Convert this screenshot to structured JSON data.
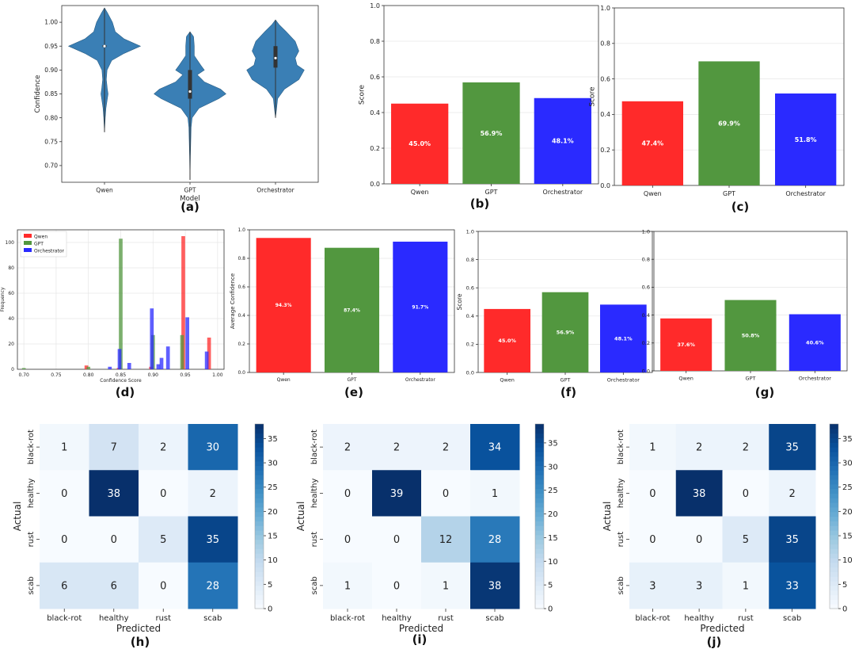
{
  "colors": {
    "qwen": "#ff2a2a",
    "gpt": "#52973f",
    "orchestrator": "#2a2aff",
    "violin": "#3a7fb5",
    "heat_low": "#f7fbff",
    "heat_high": "#08306b"
  },
  "chart_data": [
    {
      "id": "a",
      "label": "(a)",
      "type": "violin",
      "categories": [
        "Qwen",
        "GPT",
        "Orchestrator"
      ],
      "xlabel": "Model",
      "ylabel": "Confidence",
      "ylim": [
        0.665,
        1.035
      ],
      "yticks": [
        0.7,
        0.75,
        0.8,
        0.85,
        0.9,
        0.95,
        1.0
      ],
      "ytick_labels": [
        "0.70",
        "0.75",
        "0.80",
        "0.85",
        "0.90",
        "0.95",
        "1.00"
      ],
      "violins": [
        {
          "name": "Qwen",
          "median": 0.95,
          "q1": 0.948,
          "q3": 0.952,
          "profile": [
            [
              0.77,
              0.0
            ],
            [
              0.8,
              0.02
            ],
            [
              0.82,
              0.04
            ],
            [
              0.84,
              0.08
            ],
            [
              0.85,
              0.1
            ],
            [
              0.86,
              0.08
            ],
            [
              0.88,
              0.05
            ],
            [
              0.9,
              0.07
            ],
            [
              0.92,
              0.2
            ],
            [
              0.935,
              0.55
            ],
            [
              0.95,
              1.0
            ],
            [
              0.965,
              0.55
            ],
            [
              0.98,
              0.3
            ],
            [
              1.0,
              0.22
            ],
            [
              1.02,
              0.08
            ],
            [
              1.03,
              0.0
            ]
          ]
        },
        {
          "name": "GPT",
          "median": 0.855,
          "q1": 0.84,
          "q3": 0.9,
          "profile": [
            [
              0.67,
              0.0
            ],
            [
              0.72,
              0.01
            ],
            [
              0.78,
              0.03
            ],
            [
              0.8,
              0.06
            ],
            [
              0.82,
              0.25
            ],
            [
              0.84,
              0.8
            ],
            [
              0.85,
              1.0
            ],
            [
              0.86,
              0.85
            ],
            [
              0.875,
              0.4
            ],
            [
              0.89,
              0.2
            ],
            [
              0.9,
              0.4
            ],
            [
              0.91,
              0.3
            ],
            [
              0.93,
              0.12
            ],
            [
              0.95,
              0.12
            ],
            [
              0.97,
              0.1
            ],
            [
              0.98,
              0.0
            ]
          ]
        },
        {
          "name": "Orchestrator",
          "median": 0.925,
          "q1": 0.905,
          "q3": 0.95,
          "profile": [
            [
              0.8,
              0.0
            ],
            [
              0.82,
              0.03
            ],
            [
              0.84,
              0.06
            ],
            [
              0.86,
              0.25
            ],
            [
              0.88,
              0.65
            ],
            [
              0.9,
              0.8
            ],
            [
              0.91,
              0.6
            ],
            [
              0.925,
              0.55
            ],
            [
              0.94,
              0.65
            ],
            [
              0.96,
              0.55
            ],
            [
              0.98,
              0.3
            ],
            [
              0.995,
              0.1
            ],
            [
              1.005,
              0.0
            ]
          ]
        }
      ]
    },
    {
      "id": "b",
      "label": "(b)",
      "type": "bar",
      "categories": [
        "Qwen",
        "GPT",
        "Orchestrator"
      ],
      "values": [
        45.0,
        56.9,
        48.1
      ],
      "value_labels": [
        "45.0%",
        "56.9%",
        "48.1%"
      ],
      "ylabel": "Score",
      "ylim": [
        0,
        1.0
      ],
      "ytick_labels": [
        "0.0",
        "0.2",
        "0.4",
        "0.6",
        "0.8",
        "1.0"
      ]
    },
    {
      "id": "c",
      "label": "(c)",
      "type": "bar",
      "categories": [
        "Qwen",
        "GPT",
        "Orchestrator"
      ],
      "values": [
        47.4,
        69.9,
        51.8
      ],
      "value_labels": [
        "47.4%",
        "69.9%",
        "51.8%"
      ],
      "ylabel": "Score",
      "ylim": [
        0,
        1.0
      ],
      "ytick_labels": [
        "0.0",
        "0.2",
        "0.4",
        "0.6",
        "0.8",
        "1.0"
      ]
    },
    {
      "id": "d",
      "label": "(d)",
      "type": "histogram",
      "xlabel": "Confidence Score",
      "ylabel": "Frequency",
      "xlim": [
        0.69,
        1.01
      ],
      "ylim": [
        0,
        110
      ],
      "xtick_labels": [
        "0.70",
        "0.75",
        "0.80",
        "0.85",
        "0.90",
        "0.95",
        "1.00"
      ],
      "ytick_labels": [
        "0",
        "20",
        "40",
        "60",
        "80",
        "100"
      ],
      "legend": [
        "Qwen",
        "GPT",
        "Orchestrator"
      ],
      "series": [
        {
          "name": "Qwen",
          "bins": [
            [
              0.8,
              3
            ],
            [
              0.85,
              1
            ],
            [
              0.9,
              2
            ],
            [
              0.95,
              105
            ],
            [
              0.99,
              25
            ]
          ]
        },
        {
          "name": "GPT",
          "bins": [
            [
              0.7,
              1
            ],
            [
              0.8,
              2
            ],
            [
              0.85,
              103
            ],
            [
              0.9,
              27
            ],
            [
              0.945,
              27
            ]
          ]
        },
        {
          "name": "Orchestrator",
          "bins": [
            [
              0.83,
              2
            ],
            [
              0.845,
              16
            ],
            [
              0.86,
              5
            ],
            [
              0.895,
              48
            ],
            [
              0.905,
              4
            ],
            [
              0.91,
              9
            ],
            [
              0.92,
              18
            ],
            [
              0.95,
              41
            ],
            [
              0.98,
              14
            ]
          ]
        }
      ]
    },
    {
      "id": "e",
      "label": "(e)",
      "type": "bar",
      "categories": [
        "Qwen",
        "GPT",
        "Orchestrator"
      ],
      "values": [
        94.3,
        87.4,
        91.7
      ],
      "value_labels": [
        "94.3%",
        "87.4%",
        "91.7%"
      ],
      "ylabel": "Average Confidence",
      "ylim": [
        0,
        1.0
      ],
      "ytick_labels": [
        "0.0",
        "0.2",
        "0.4",
        "0.6",
        "0.8",
        "1.0"
      ]
    },
    {
      "id": "f",
      "label": "(f)",
      "type": "bar",
      "categories": [
        "Qwen",
        "GPT",
        "Orchestrator"
      ],
      "values": [
        45.0,
        56.9,
        48.1
      ],
      "value_labels": [
        "45.0%",
        "56.9%",
        "48.1%"
      ],
      "ylabel": "Score",
      "ylim": [
        0,
        1.0
      ],
      "ytick_labels": [
        "0.0",
        "0.2",
        "0.4",
        "0.6",
        "0.8",
        "1.0"
      ]
    },
    {
      "id": "g",
      "label": "(g)",
      "type": "bar",
      "categories": [
        "Qwen",
        "GPT",
        "Orchestrator"
      ],
      "values": [
        37.6,
        50.8,
        40.6
      ],
      "value_labels": [
        "37.6%",
        "50.8%",
        "40.6%"
      ],
      "ylabel": "",
      "ylim": [
        0,
        1.0
      ],
      "ytick_labels": [
        "0.0",
        "0.2",
        "0.4",
        "0.6",
        "0.8",
        "1.0"
      ]
    },
    {
      "id": "h",
      "label": "(h)",
      "type": "heatmap",
      "xlabel": "Predicted",
      "ylabel": "Actual",
      "classes": [
        "black-rot",
        "healthy",
        "rust",
        "scab"
      ],
      "matrix": [
        [
          1,
          7,
          2,
          30
        ],
        [
          0,
          38,
          0,
          2
        ],
        [
          0,
          0,
          5,
          35
        ],
        [
          6,
          6,
          0,
          28
        ]
      ],
      "vmax": 38,
      "colorbar_ticks": [
        0,
        5,
        10,
        15,
        20,
        25,
        30,
        35
      ],
      "colorbar_tick_labels": [
        "0",
        "5",
        "10",
        "15",
        "20",
        "25",
        "30",
        "35"
      ]
    },
    {
      "id": "i",
      "label": "(i)",
      "type": "heatmap",
      "xlabel": "Predicted",
      "ylabel": "Actual",
      "classes": [
        "black-rot",
        "healthy",
        "rust",
        "scab"
      ],
      "matrix": [
        [
          2,
          2,
          2,
          34
        ],
        [
          0,
          39,
          0,
          1
        ],
        [
          0,
          0,
          12,
          28
        ],
        [
          1,
          0,
          1,
          38
        ]
      ],
      "vmax": 39,
      "colorbar_ticks": [
        0,
        5,
        10,
        15,
        20,
        25,
        30,
        35
      ],
      "colorbar_tick_labels": [
        "0",
        "5",
        "10",
        "15",
        "20",
        "25",
        "30",
        "35"
      ]
    },
    {
      "id": "j",
      "label": "(j)",
      "type": "heatmap",
      "xlabel": "Predicted",
      "ylabel": "Actual",
      "classes": [
        "black-rot",
        "healthy",
        "rust",
        "scab"
      ],
      "matrix": [
        [
          1,
          2,
          2,
          35
        ],
        [
          0,
          38,
          0,
          2
        ],
        [
          0,
          0,
          5,
          35
        ],
        [
          3,
          3,
          1,
          33
        ]
      ],
      "vmax": 38,
      "colorbar_ticks": [
        0,
        5,
        10,
        15,
        20,
        25,
        30,
        35
      ],
      "colorbar_tick_labels": [
        "0",
        "5",
        "10",
        "15",
        "20",
        "25",
        "30",
        "35"
      ]
    }
  ]
}
